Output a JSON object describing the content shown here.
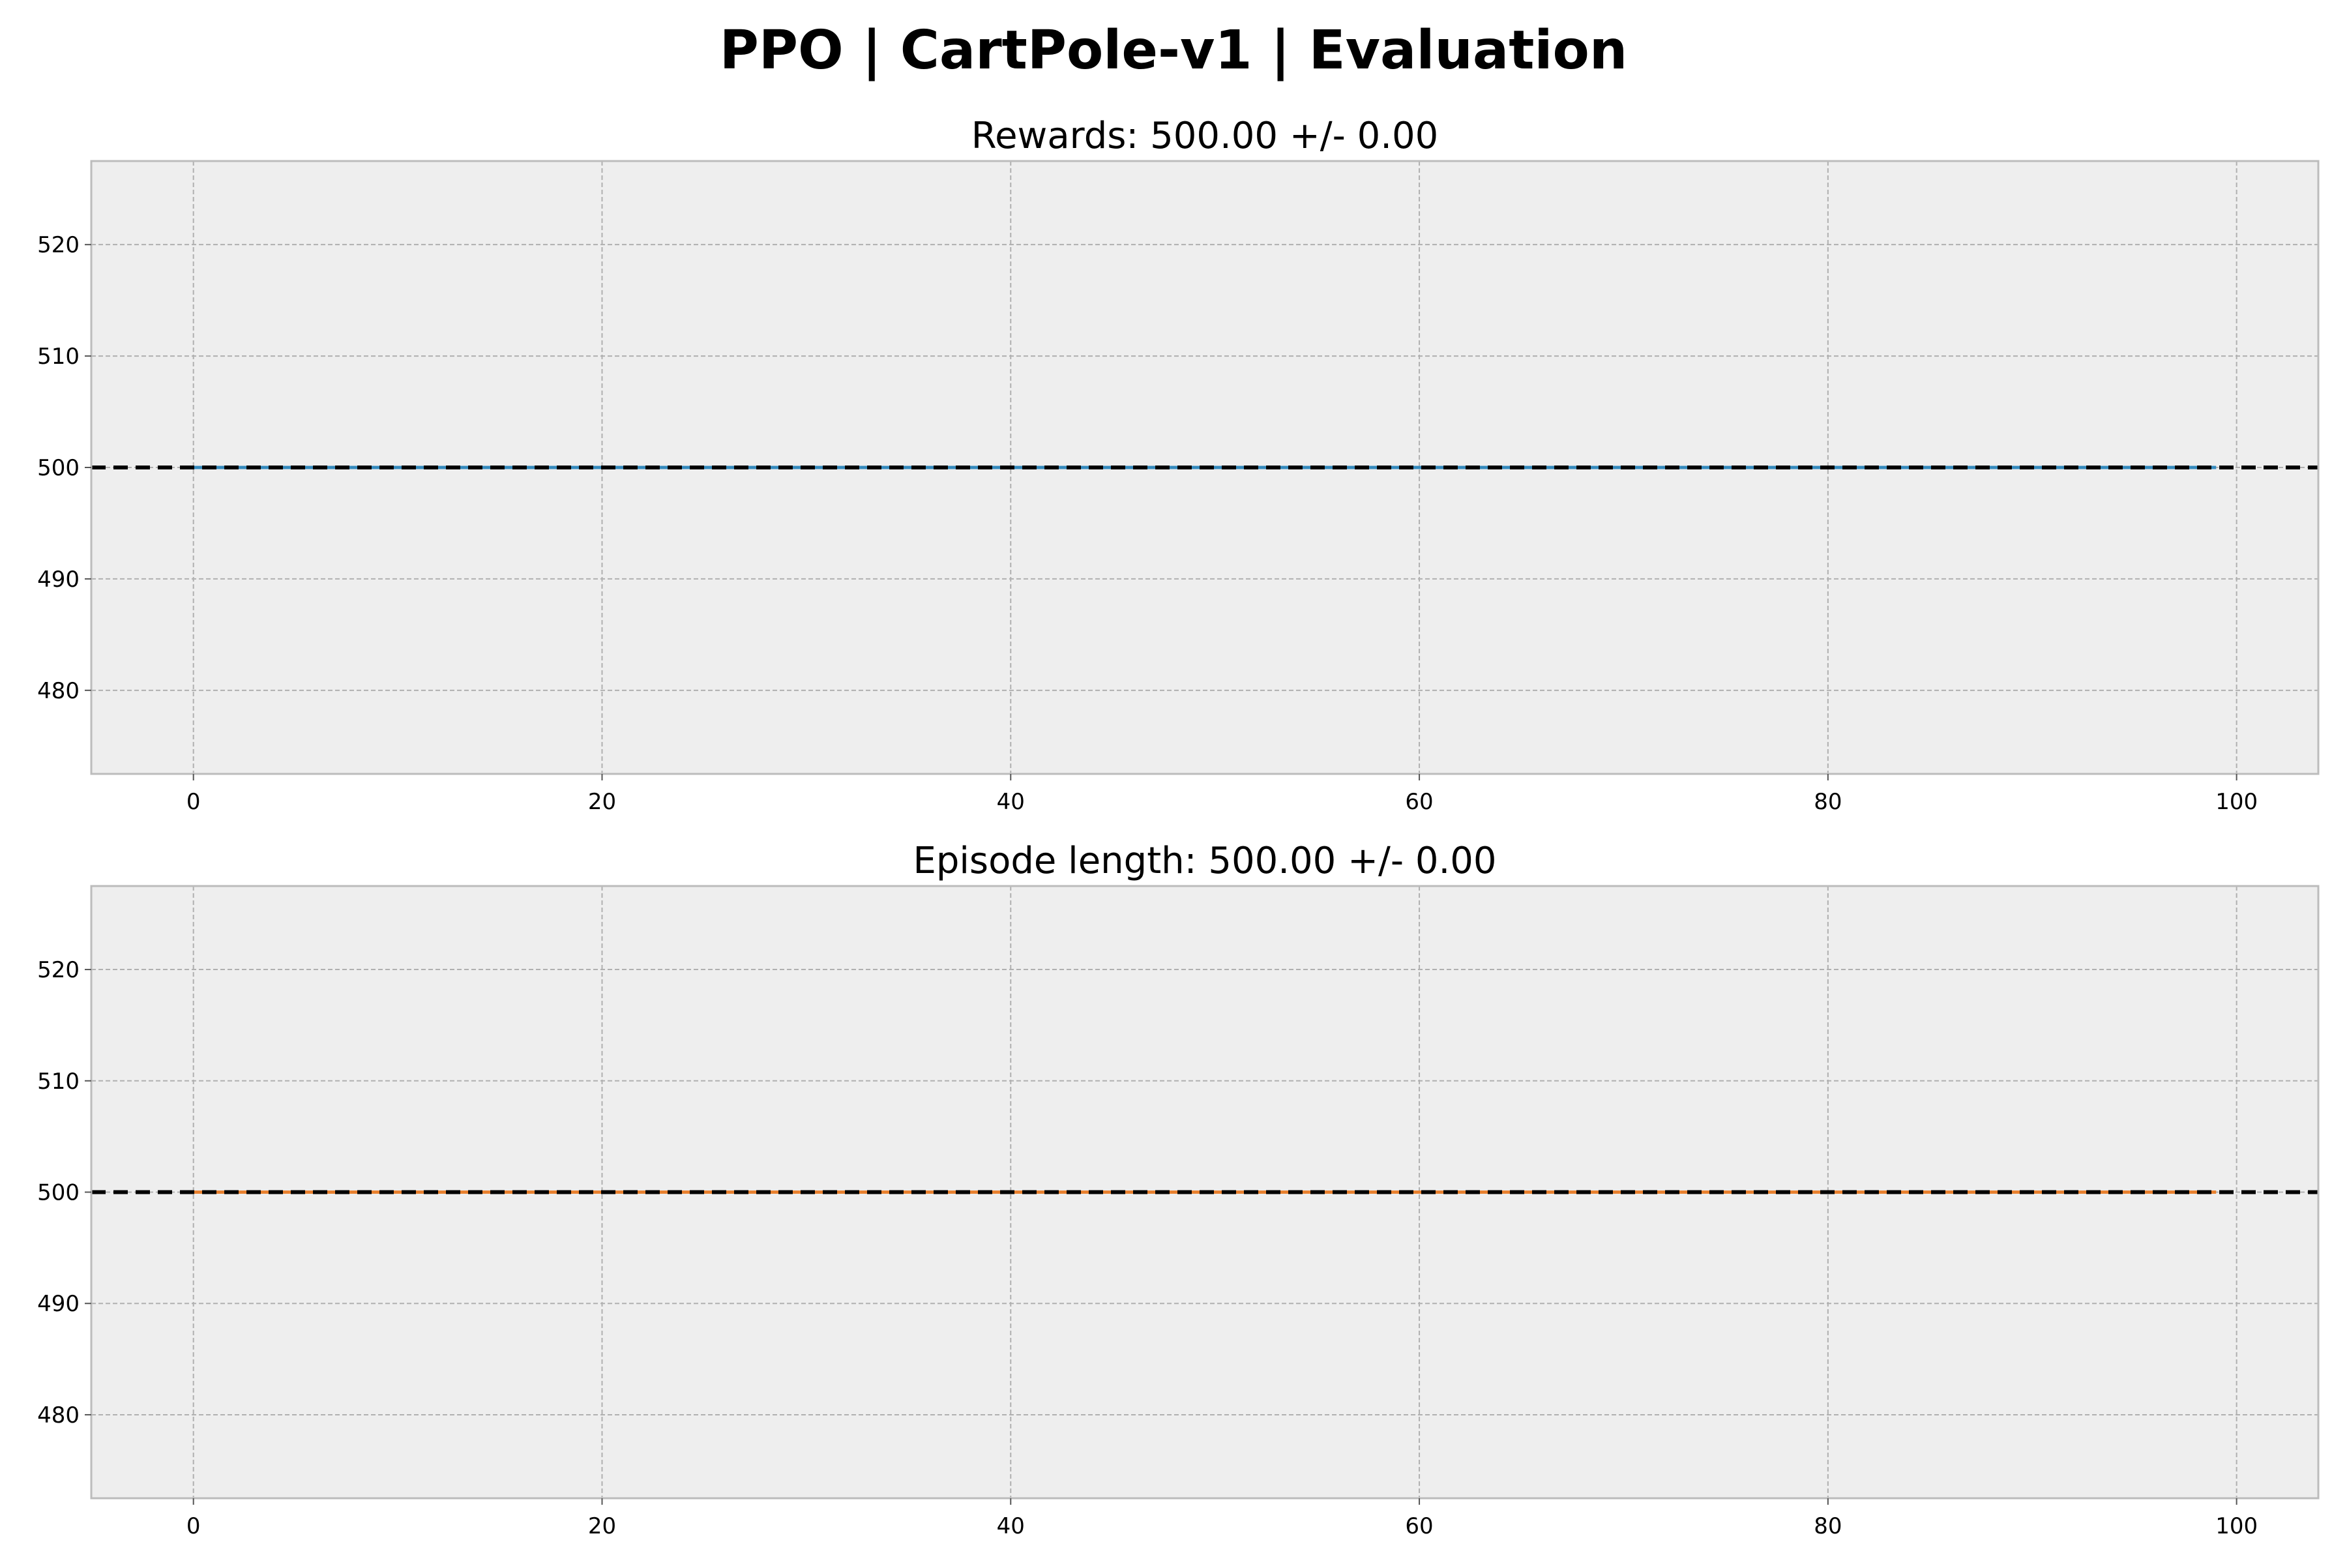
{
  "figure": {
    "title": "PPO | CartPole-v1 | Evaluation",
    "colors": {
      "background": "#eeeeee",
      "grid": "#b0b0b0",
      "spine": "#bcbcbc",
      "mean_line": "#000000"
    }
  },
  "chart_data": [
    {
      "type": "line",
      "title": "Rewards: 500.00 +/- 0.00",
      "xlabel": "",
      "ylabel": "",
      "xlim": [
        -5,
        104
      ],
      "ylim": [
        472.5,
        527.5
      ],
      "xticks": [
        0,
        20,
        40,
        60,
        80,
        100
      ],
      "yticks": [
        480,
        490,
        500,
        510,
        520
      ],
      "grid": true,
      "series": [
        {
          "color": "#348ABD",
          "x_start": 0,
          "x_end": 99,
          "constant_value": 500
        }
      ],
      "reference_line": {
        "value": 500,
        "style": "dashed",
        "color": "#000000"
      }
    },
    {
      "type": "line",
      "title": "Episode length: 500.00 +/- 0.00",
      "xlabel": "",
      "ylabel": "",
      "xlim": [
        -5,
        104
      ],
      "ylim": [
        472.5,
        527.5
      ],
      "xticks": [
        0,
        20,
        40,
        60,
        80,
        100
      ],
      "yticks": [
        480,
        490,
        500,
        510,
        520
      ],
      "grid": true,
      "series": [
        {
          "color": "#E8812F",
          "x_start": 0,
          "x_end": 99,
          "constant_value": 500
        }
      ],
      "reference_line": {
        "value": 500,
        "style": "dashed",
        "color": "#000000"
      }
    }
  ]
}
